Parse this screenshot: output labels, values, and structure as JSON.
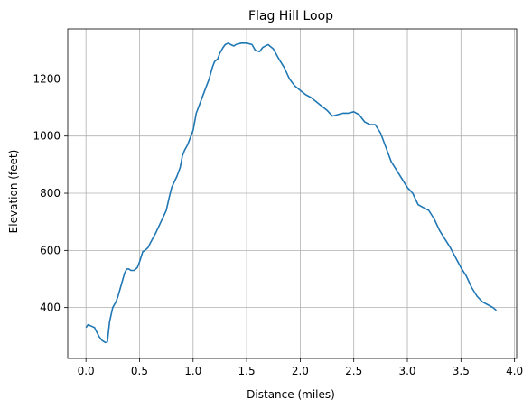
{
  "chart_data": {
    "type": "line",
    "title": "Flag Hill Loop",
    "xlabel": "Distance (miles)",
    "ylabel": "Elevation (feet)",
    "xlim": [
      -0.17,
      4.02
    ],
    "ylim": [
      222,
      1375
    ],
    "xticks": [
      0.0,
      0.5,
      1.0,
      1.5,
      2.0,
      2.5,
      3.0,
      3.5,
      4.0
    ],
    "xtick_labels": [
      "0.0",
      "0.5",
      "1.0",
      "1.5",
      "2.0",
      "2.5",
      "3.0",
      "3.5",
      "4.0"
    ],
    "yticks": [
      400,
      600,
      800,
      1000,
      1200
    ],
    "ytick_labels": [
      "400",
      "600",
      "800",
      "1000",
      "1200"
    ],
    "grid": true,
    "line_color": "#1f77b4",
    "series": [
      {
        "x": [
          0.0,
          0.02,
          0.05,
          0.08,
          0.1,
          0.12,
          0.15,
          0.18,
          0.2,
          0.22,
          0.25,
          0.28,
          0.3,
          0.33,
          0.36,
          0.38,
          0.4,
          0.42,
          0.45,
          0.48,
          0.5,
          0.53,
          0.55,
          0.58,
          0.6,
          0.65,
          0.7,
          0.75,
          0.78,
          0.8,
          0.85,
          0.88,
          0.9,
          0.92,
          0.95,
          0.98,
          1.0,
          1.03,
          1.07,
          1.1,
          1.15,
          1.18,
          1.2,
          1.23,
          1.25,
          1.28,
          1.3,
          1.33,
          1.35,
          1.38,
          1.4,
          1.45,
          1.5,
          1.55,
          1.58,
          1.62,
          1.65,
          1.7,
          1.75,
          1.8,
          1.85,
          1.9,
          1.95,
          2.0,
          2.05,
          2.1,
          2.15,
          2.2,
          2.25,
          2.3,
          2.35,
          2.4,
          2.45,
          2.5,
          2.55,
          2.6,
          2.65,
          2.7,
          2.75,
          2.8,
          2.85,
          2.9,
          2.95,
          3.0,
          3.05,
          3.1,
          3.15,
          3.2,
          3.25,
          3.3,
          3.35,
          3.4,
          3.45,
          3.5,
          3.55,
          3.6,
          3.65,
          3.7,
          3.75,
          3.8,
          3.83
        ],
        "y": [
          330,
          340,
          335,
          330,
          315,
          300,
          285,
          278,
          280,
          350,
          400,
          420,
          440,
          480,
          520,
          535,
          535,
          530,
          530,
          540,
          560,
          595,
          600,
          610,
          625,
          660,
          700,
          740,
          790,
          820,
          860,
          890,
          930,
          950,
          970,
          1000,
          1020,
          1080,
          1120,
          1150,
          1200,
          1240,
          1260,
          1270,
          1290,
          1310,
          1320,
          1325,
          1320,
          1315,
          1320,
          1325,
          1325,
          1320,
          1300,
          1295,
          1310,
          1320,
          1305,
          1270,
          1240,
          1200,
          1175,
          1160,
          1145,
          1135,
          1120,
          1105,
          1090,
          1070,
          1075,
          1080,
          1080,
          1085,
          1075,
          1050,
          1040,
          1040,
          1010,
          960,
          910,
          880,
          850,
          820,
          800,
          760,
          750,
          740,
          710,
          670,
          640,
          610,
          575,
          540,
          510,
          470,
          440,
          420,
          410,
          400,
          390
        ]
      }
    ]
  }
}
